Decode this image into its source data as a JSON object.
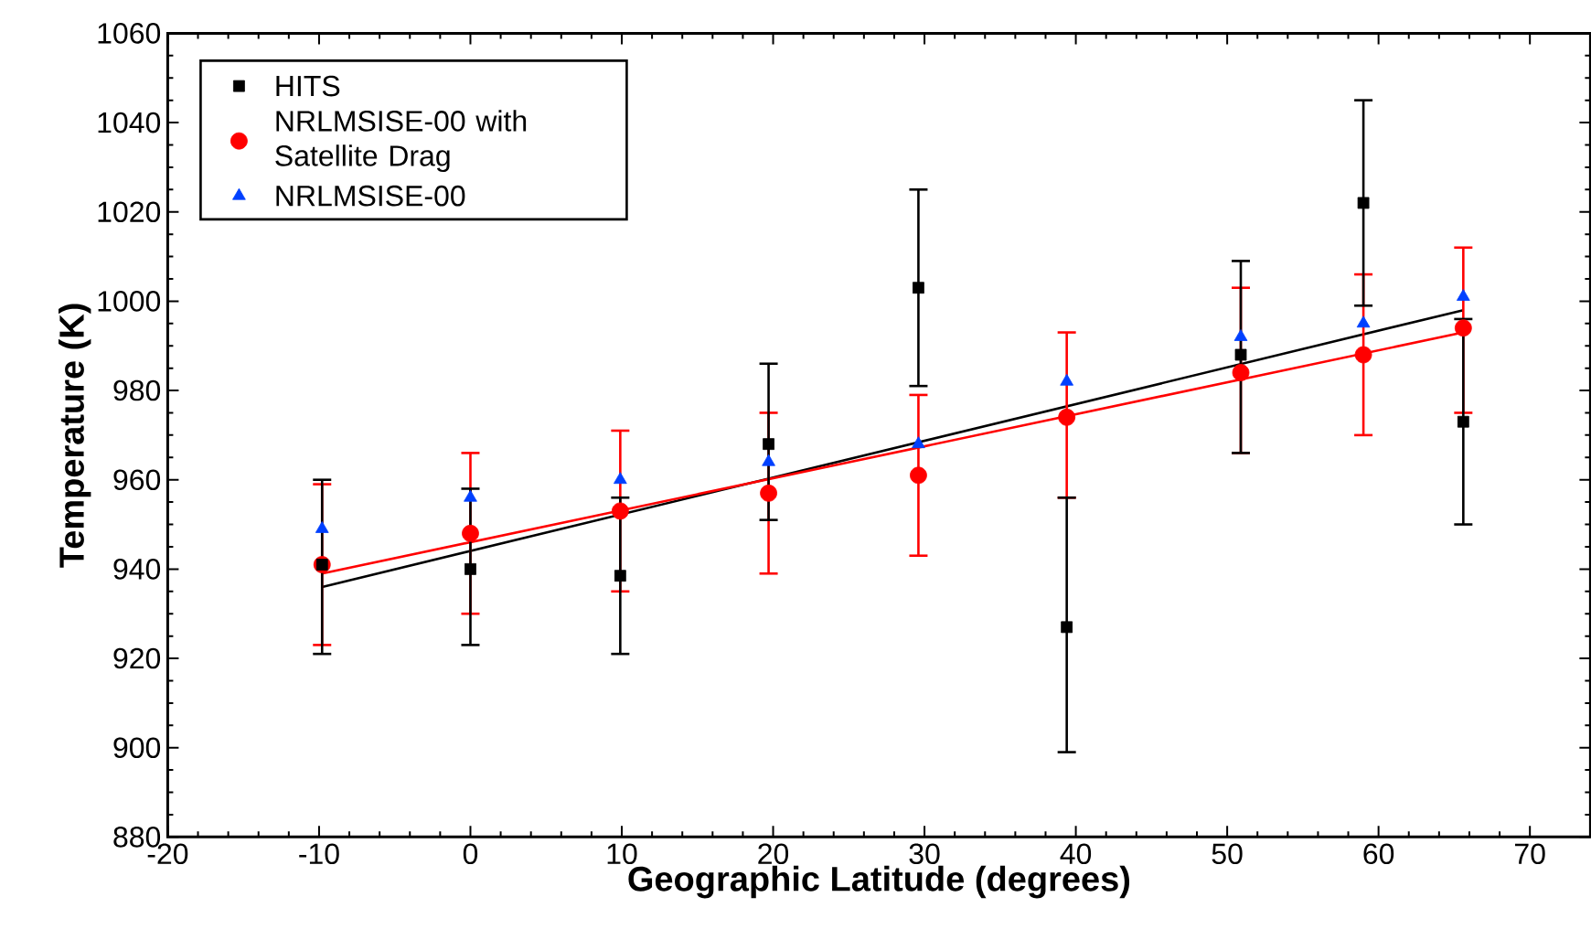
{
  "chart_data": {
    "type": "scatter",
    "xlabel": "Geographic Latitude (degrees)",
    "ylabel": "Temperature (K)",
    "xlim": [
      -20,
      74
    ],
    "ylim": [
      880,
      1060
    ],
    "xticks": [
      -20,
      -10,
      0,
      10,
      20,
      30,
      40,
      50,
      60,
      70
    ],
    "yticks": [
      880,
      900,
      920,
      940,
      960,
      980,
      1000,
      1020,
      1040,
      1060
    ],
    "legend": "top left",
    "series": [
      {
        "name": "HITS",
        "type": "scatter",
        "marker": "square",
        "color": "#000000",
        "x": [
          -9.8,
          0,
          9.9,
          19.7,
          29.6,
          39.4,
          50.9,
          59,
          65.6
        ],
        "values": [
          941,
          940,
          938.5,
          968,
          1003,
          927,
          988,
          1022,
          973
        ],
        "errors": [
          [
            921,
            960
          ],
          [
            923,
            958
          ],
          [
            921,
            956
          ],
          [
            951,
            986
          ],
          [
            981,
            1025
          ],
          [
            899,
            956
          ],
          [
            966,
            1009
          ],
          [
            999,
            1045
          ],
          [
            950,
            996
          ]
        ]
      },
      {
        "name": "NRLMSISE-00 with Satellite Drag",
        "type": "scatter",
        "marker": "circle",
        "color": "#ff0000",
        "x": [
          -9.8,
          0,
          9.9,
          19.7,
          29.6,
          39.4,
          50.9,
          59,
          65.6
        ],
        "values": [
          941,
          948,
          953,
          957,
          961,
          974,
          984,
          988,
          994
        ],
        "errors": [
          [
            923,
            959
          ],
          [
            930,
            966
          ],
          [
            935,
            971
          ],
          [
            939,
            975
          ],
          [
            943,
            979
          ],
          [
            956,
            993
          ],
          [
            966,
            1003
          ],
          [
            970,
            1006
          ],
          [
            975,
            1012
          ]
        ]
      },
      {
        "name": "NRLMSISE-00",
        "type": "scatter",
        "marker": "triangle",
        "color": "#0040ff",
        "x": [
          -9.8,
          0,
          9.9,
          19.7,
          29.6,
          39.4,
          50.9,
          59,
          65.6
        ],
        "values": [
          949,
          956,
          960,
          964,
          968,
          982,
          992,
          995,
          1001
        ]
      },
      {
        "type": "line",
        "marker": "none",
        "color": "#000000",
        "x": [
          -9.8,
          65.6
        ],
        "values": [
          936,
          998
        ]
      },
      {
        "type": "line",
        "marker": "none",
        "color": "#ff0000",
        "x": [
          -9.8,
          65.6
        ],
        "values": [
          939,
          993
        ]
      }
    ]
  }
}
